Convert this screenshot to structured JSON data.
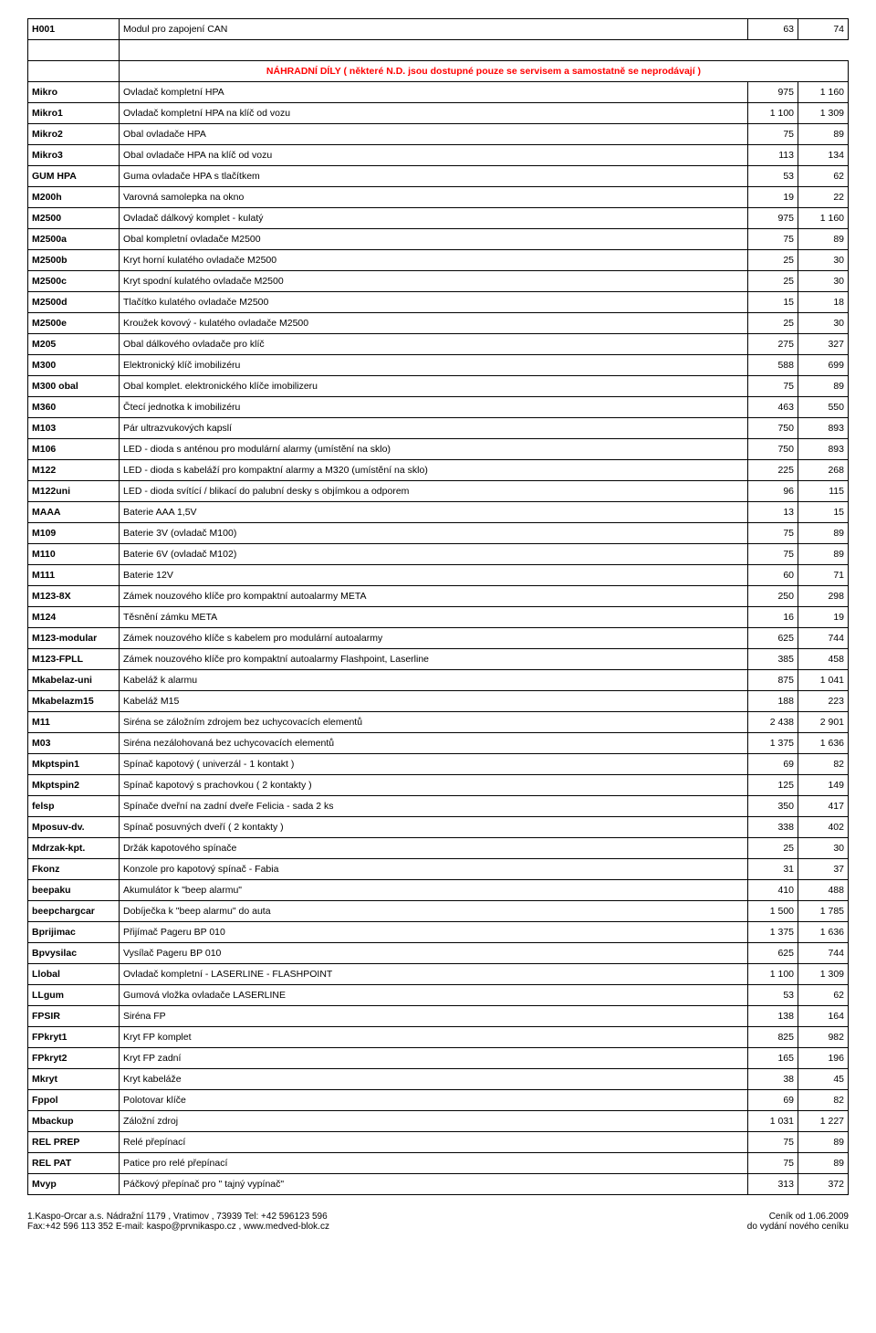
{
  "section_title": "NÁHRADNÍ DÍLY ( některé N.D. jsou dostupné pouze se servisem a samostatně se neprodávají )",
  "first_row": {
    "code": "H001",
    "desc": "Modul pro zapojení CAN",
    "v1": "63",
    "v2": "74"
  },
  "rows": [
    {
      "code": "Mikro",
      "desc": "Ovladač kompletní HPA",
      "v1": "975",
      "v2": "1 160"
    },
    {
      "code": "Mikro1",
      "desc": "Ovladač kompletní HPA  na klíč od vozu",
      "v1": "1 100",
      "v2": "1 309"
    },
    {
      "code": "Mikro2",
      "desc": "Obal ovladače HPA",
      "v1": "75",
      "v2": "89"
    },
    {
      "code": "Mikro3",
      "desc": "Obal ovladače HPA na klíč od vozu",
      "v1": "113",
      "v2": "134"
    },
    {
      "code": "GUM HPA",
      "desc": "Guma ovladače HPA s tlačítkem",
      "v1": "53",
      "v2": "62"
    },
    {
      "code": "M200h",
      "desc": "Varovná samolepka na okno",
      "v1": "19",
      "v2": "22"
    },
    {
      "code": "M2500",
      "desc": "Ovladač dálkový komplet - kulatý",
      "v1": "975",
      "v2": "1 160"
    },
    {
      "code": "M2500a",
      "desc": "Obal kompletní ovladače M2500",
      "v1": "75",
      "v2": "89"
    },
    {
      "code": "M2500b",
      "desc": "Kryt horní  kulatého ovladače M2500",
      "v1": "25",
      "v2": "30"
    },
    {
      "code": "M2500c",
      "desc": "Kryt spodní kulatého ovladače M2500",
      "v1": "25",
      "v2": "30"
    },
    {
      "code": "M2500d",
      "desc": "Tlačítko kulatého ovladače M2500",
      "v1": "15",
      "v2": "18"
    },
    {
      "code": "M2500e",
      "desc": "Kroužek kovový - kulatého ovladače M2500",
      "v1": "25",
      "v2": "30"
    },
    {
      "code": "M205",
      "desc": "Obal dálkového ovladače pro klíč",
      "v1": "275",
      "v2": "327"
    },
    {
      "code": "M300",
      "desc": "Elektronický klíč imobilizéru",
      "v1": "588",
      "v2": "699"
    },
    {
      "code": "M300 obal",
      "desc": "Obal komplet. elektronického klíče imobilizeru",
      "v1": "75",
      "v2": "89"
    },
    {
      "code": "M360",
      "desc": "Čtecí jednotka k imobilizéru",
      "v1": "463",
      "v2": "550"
    },
    {
      "code": "M103",
      "desc": "Pár ultrazvukových kapslí",
      "v1": "750",
      "v2": "893"
    },
    {
      "code": "M106",
      "desc": "LED - dioda s anténou pro modulární alarmy (umístění na sklo)",
      "v1": "750",
      "v2": "893"
    },
    {
      "code": "M122",
      "desc": "LED - dioda s kabeláží pro kompaktní alarmy a M320 (umístění na sklo)",
      "v1": "225",
      "v2": "268"
    },
    {
      "code": "M122uni",
      "desc": "LED - dioda svítící / blikací do palubní desky s objímkou a odporem",
      "v1": "96",
      "v2": "115"
    },
    {
      "code": "MAAA",
      "desc": "Baterie AAA  1,5V",
      "v1": "13",
      "v2": "15"
    },
    {
      "code": "M109",
      "desc": "Baterie 3V  (ovladač M100)",
      "v1": "75",
      "v2": "89"
    },
    {
      "code": "M110",
      "desc": "Baterie 6V (ovladač M102)",
      "v1": "75",
      "v2": "89"
    },
    {
      "code": "M111",
      "desc": "Baterie 12V",
      "v1": "60",
      "v2": "71"
    },
    {
      "code": "M123-8X",
      "desc": "Zámek nouzového klíče pro kompaktní autoalarmy META",
      "v1": "250",
      "v2": "298"
    },
    {
      "code": "M124",
      "desc": "Těsnění zámku META",
      "v1": "16",
      "v2": "19"
    },
    {
      "code": "M123-modular",
      "desc": "Zámek nouzového klíče s kabelem pro modulární autoalarmy",
      "v1": "625",
      "v2": "744"
    },
    {
      "code": "M123-FPLL",
      "desc": "Zámek nouzového klíče pro kompaktní autoalarmy Flashpoint, Laserline",
      "v1": "385",
      "v2": "458"
    },
    {
      "code": "Mkabelaz-uni",
      "desc": "Kabeláž k alarmu",
      "v1": "875",
      "v2": "1 041"
    },
    {
      "code": "Mkabelazm15",
      "desc": "Kabeláž M15",
      "v1": "188",
      "v2": "223"
    },
    {
      "code": "M11",
      "desc": "Siréna se záložním zdrojem bez uchycovacích elementů",
      "v1": "2 438",
      "v2": "2 901"
    },
    {
      "code": "M03",
      "desc": "Siréna nezálohovaná bez uchycovacích elementů",
      "v1": "1 375",
      "v2": "1 636"
    },
    {
      "code": "Mkptspin1",
      "desc": "Spínač kapotový ( univerzál - 1 kontakt )",
      "v1": "69",
      "v2": "82"
    },
    {
      "code": "Mkptspin2",
      "desc": "Spínač kapotový s prachovkou ( 2 kontakty )",
      "v1": "125",
      "v2": "149"
    },
    {
      "code": "felsp",
      "desc": "Spínače dveřní na zadní dveře Felicia - sada 2 ks",
      "v1": "350",
      "v2": "417"
    },
    {
      "code": "Mposuv-dv.",
      "desc": "Spínač posuvných dveří ( 2 kontakty )",
      "v1": "338",
      "v2": "402"
    },
    {
      "code": "Mdrzak-kpt.",
      "desc": "Držák kapotového spínače",
      "v1": "25",
      "v2": "30"
    },
    {
      "code": "Fkonz",
      "desc": "Konzole pro kapotový spínač - Fabia",
      "v1": "31",
      "v2": "37"
    },
    {
      "code": "beepaku",
      "desc": "Akumulátor k \"beep alarmu\"",
      "v1": "410",
      "v2": "488"
    },
    {
      "code": "beepchargcar",
      "desc": "Dobíječka k \"beep alarmu\" do auta",
      "v1": "1 500",
      "v2": "1 785"
    },
    {
      "code": "Bprijimac",
      "desc": "Přijímač Pageru BP 010",
      "v1": "1 375",
      "v2": "1 636"
    },
    {
      "code": "Bpvysilac",
      "desc": "Vysílač Pageru BP 010",
      "v1": "625",
      "v2": "744"
    },
    {
      "code": "Llobal",
      "desc": "Ovladač kompletní - LASERLINE - FLASHPOINT",
      "v1": "1 100",
      "v2": "1 309"
    },
    {
      "code": "LLgum",
      "desc": "Gumová vložka ovladače LASERLINE",
      "v1": "53",
      "v2": "62"
    },
    {
      "code": "FPSIR",
      "desc": "Siréna FP",
      "v1": "138",
      "v2": "164"
    },
    {
      "code": "FPkryt1",
      "desc": "Kryt FP komplet",
      "v1": "825",
      "v2": "982"
    },
    {
      "code": "FPkryt2",
      "desc": "Kryt FP zadní",
      "v1": "165",
      "v2": "196"
    },
    {
      "code": "Mkryt",
      "desc": "Kryt kabeláže",
      "v1": "38",
      "v2": "45"
    },
    {
      "code": "Fppol",
      "desc": "Polotovar klíče",
      "v1": "69",
      "v2": "82"
    },
    {
      "code": "Mbackup",
      "desc": "Záložní zdroj",
      "v1": "1 031",
      "v2": "1 227"
    },
    {
      "code": "REL PREP",
      "desc": "Relé přepínací",
      "v1": "75",
      "v2": "89"
    },
    {
      "code": "REL PAT",
      "desc": "Patice pro relé přepínací",
      "v1": "75",
      "v2": "89"
    },
    {
      "code": "Mvyp",
      "desc": "Páčkový přepínač pro \" tajný vypínač\"",
      "v1": "313",
      "v2": "372"
    }
  ],
  "footer": {
    "left_line1": "1.Kaspo-Orcar a.s. Nádražní 1179 , Vratimov , 73939 Tel: +42 596123 596",
    "left_line2": "Fax:+42 596 113 352 E-mail: kaspo@prvnikaspo.cz , www.medved-blok.cz",
    "right_line1": "Ceník od 1.06.2009",
    "right_line2": "do vydání nového ceníku"
  },
  "styles": {
    "background_color": "#ffffff",
    "border_color": "#000000",
    "section_title_color": "#ff0000",
    "font_family": "Arial, sans-serif",
    "cell_font_size": 10.5,
    "footer_font_size": 10
  }
}
